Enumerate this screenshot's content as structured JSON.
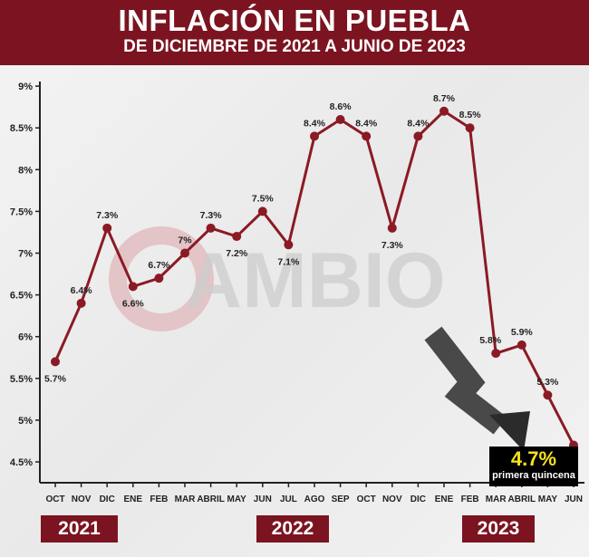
{
  "header": {
    "title": "INFLACIÓN EN PUEBLA",
    "subtitle": "DE DICIEMBRE DE 2021 A JUNIO DE 2023"
  },
  "watermark": "CAMBIO",
  "years": [
    "2021",
    "2022",
    "2023"
  ],
  "callout": {
    "value": "4.7%",
    "note": "primera quincena"
  },
  "colors": {
    "brand": "#7b1420",
    "line": "#8b1a24",
    "callout_bg": "#000000",
    "callout_value": "#f5e21d"
  },
  "chart_data": {
    "type": "line",
    "title": "INFLACIÓN EN PUEBLA",
    "subtitle": "DE DICIEMBRE DE 2021 A JUNIO DE 2023",
    "categories": [
      "OCT",
      "NOV",
      "DIC",
      "ENE",
      "FEB",
      "MAR",
      "ABRIL",
      "MAY",
      "JUN",
      "JUL",
      "AGO",
      "SEP",
      "OCT",
      "NOV",
      "DIC",
      "ENE",
      "FEB",
      "MAR",
      "ABRIL",
      "MAY",
      "JUN"
    ],
    "values": [
      5.7,
      6.4,
      7.3,
      6.6,
      6.7,
      7.0,
      7.3,
      7.2,
      7.5,
      7.1,
      8.4,
      8.6,
      8.4,
      7.3,
      8.4,
      8.7,
      8.5,
      5.8,
      5.9,
      5.3,
      4.7
    ],
    "data_labels": [
      "5.7%",
      "6.4%",
      "7.3%",
      "6.6%",
      "6.7%",
      "7%",
      "7.3%",
      "7.2%",
      "7.5%",
      "7.1%",
      "8.4%",
      "8.6%",
      "8.4%",
      "7.3%",
      "8.4%",
      "8.7%",
      "8.5%",
      "5.8%",
      "5.9%",
      "5.3%",
      ""
    ],
    "yticks": [
      "4.5%",
      "5%",
      "5.5%",
      "6%",
      "6.5%",
      "7%",
      "7.5%",
      "8%",
      "8.5%",
      "9%"
    ],
    "ylim": [
      4.5,
      9
    ],
    "grid": false,
    "legend": "none"
  }
}
